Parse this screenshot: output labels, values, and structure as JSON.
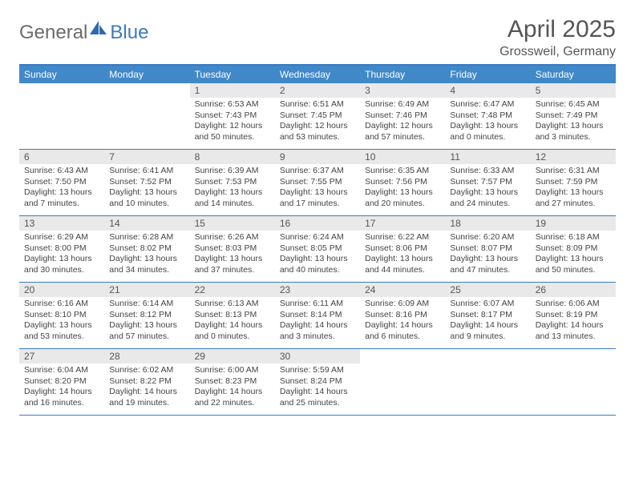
{
  "brand": {
    "word1": "General",
    "word2": "Blue"
  },
  "title": "April 2025",
  "location": "Grossweil, Germany",
  "colors": {
    "header_bg": "#4188c9",
    "border": "#3a7abf",
    "daynum_bg": "#e9e9e9",
    "text": "#444444"
  },
  "dow": [
    "Sunday",
    "Monday",
    "Tuesday",
    "Wednesday",
    "Thursday",
    "Friday",
    "Saturday"
  ],
  "weeks": [
    [
      {
        "n": "",
        "sr": "",
        "ss": "",
        "dl": ""
      },
      {
        "n": "",
        "sr": "",
        "ss": "",
        "dl": ""
      },
      {
        "n": "1",
        "sr": "Sunrise: 6:53 AM",
        "ss": "Sunset: 7:43 PM",
        "dl": "Daylight: 12 hours and 50 minutes."
      },
      {
        "n": "2",
        "sr": "Sunrise: 6:51 AM",
        "ss": "Sunset: 7:45 PM",
        "dl": "Daylight: 12 hours and 53 minutes."
      },
      {
        "n": "3",
        "sr": "Sunrise: 6:49 AM",
        "ss": "Sunset: 7:46 PM",
        "dl": "Daylight: 12 hours and 57 minutes."
      },
      {
        "n": "4",
        "sr": "Sunrise: 6:47 AM",
        "ss": "Sunset: 7:48 PM",
        "dl": "Daylight: 13 hours and 0 minutes."
      },
      {
        "n": "5",
        "sr": "Sunrise: 6:45 AM",
        "ss": "Sunset: 7:49 PM",
        "dl": "Daylight: 13 hours and 3 minutes."
      }
    ],
    [
      {
        "n": "6",
        "sr": "Sunrise: 6:43 AM",
        "ss": "Sunset: 7:50 PM",
        "dl": "Daylight: 13 hours and 7 minutes."
      },
      {
        "n": "7",
        "sr": "Sunrise: 6:41 AM",
        "ss": "Sunset: 7:52 PM",
        "dl": "Daylight: 13 hours and 10 minutes."
      },
      {
        "n": "8",
        "sr": "Sunrise: 6:39 AM",
        "ss": "Sunset: 7:53 PM",
        "dl": "Daylight: 13 hours and 14 minutes."
      },
      {
        "n": "9",
        "sr": "Sunrise: 6:37 AM",
        "ss": "Sunset: 7:55 PM",
        "dl": "Daylight: 13 hours and 17 minutes."
      },
      {
        "n": "10",
        "sr": "Sunrise: 6:35 AM",
        "ss": "Sunset: 7:56 PM",
        "dl": "Daylight: 13 hours and 20 minutes."
      },
      {
        "n": "11",
        "sr": "Sunrise: 6:33 AM",
        "ss": "Sunset: 7:57 PM",
        "dl": "Daylight: 13 hours and 24 minutes."
      },
      {
        "n": "12",
        "sr": "Sunrise: 6:31 AM",
        "ss": "Sunset: 7:59 PM",
        "dl": "Daylight: 13 hours and 27 minutes."
      }
    ],
    [
      {
        "n": "13",
        "sr": "Sunrise: 6:29 AM",
        "ss": "Sunset: 8:00 PM",
        "dl": "Daylight: 13 hours and 30 minutes."
      },
      {
        "n": "14",
        "sr": "Sunrise: 6:28 AM",
        "ss": "Sunset: 8:02 PM",
        "dl": "Daylight: 13 hours and 34 minutes."
      },
      {
        "n": "15",
        "sr": "Sunrise: 6:26 AM",
        "ss": "Sunset: 8:03 PM",
        "dl": "Daylight: 13 hours and 37 minutes."
      },
      {
        "n": "16",
        "sr": "Sunrise: 6:24 AM",
        "ss": "Sunset: 8:05 PM",
        "dl": "Daylight: 13 hours and 40 minutes."
      },
      {
        "n": "17",
        "sr": "Sunrise: 6:22 AM",
        "ss": "Sunset: 8:06 PM",
        "dl": "Daylight: 13 hours and 44 minutes."
      },
      {
        "n": "18",
        "sr": "Sunrise: 6:20 AM",
        "ss": "Sunset: 8:07 PM",
        "dl": "Daylight: 13 hours and 47 minutes."
      },
      {
        "n": "19",
        "sr": "Sunrise: 6:18 AM",
        "ss": "Sunset: 8:09 PM",
        "dl": "Daylight: 13 hours and 50 minutes."
      }
    ],
    [
      {
        "n": "20",
        "sr": "Sunrise: 6:16 AM",
        "ss": "Sunset: 8:10 PM",
        "dl": "Daylight: 13 hours and 53 minutes."
      },
      {
        "n": "21",
        "sr": "Sunrise: 6:14 AM",
        "ss": "Sunset: 8:12 PM",
        "dl": "Daylight: 13 hours and 57 minutes."
      },
      {
        "n": "22",
        "sr": "Sunrise: 6:13 AM",
        "ss": "Sunset: 8:13 PM",
        "dl": "Daylight: 14 hours and 0 minutes."
      },
      {
        "n": "23",
        "sr": "Sunrise: 6:11 AM",
        "ss": "Sunset: 8:14 PM",
        "dl": "Daylight: 14 hours and 3 minutes."
      },
      {
        "n": "24",
        "sr": "Sunrise: 6:09 AM",
        "ss": "Sunset: 8:16 PM",
        "dl": "Daylight: 14 hours and 6 minutes."
      },
      {
        "n": "25",
        "sr": "Sunrise: 6:07 AM",
        "ss": "Sunset: 8:17 PM",
        "dl": "Daylight: 14 hours and 9 minutes."
      },
      {
        "n": "26",
        "sr": "Sunrise: 6:06 AM",
        "ss": "Sunset: 8:19 PM",
        "dl": "Daylight: 14 hours and 13 minutes."
      }
    ],
    [
      {
        "n": "27",
        "sr": "Sunrise: 6:04 AM",
        "ss": "Sunset: 8:20 PM",
        "dl": "Daylight: 14 hours and 16 minutes."
      },
      {
        "n": "28",
        "sr": "Sunrise: 6:02 AM",
        "ss": "Sunset: 8:22 PM",
        "dl": "Daylight: 14 hours and 19 minutes."
      },
      {
        "n": "29",
        "sr": "Sunrise: 6:00 AM",
        "ss": "Sunset: 8:23 PM",
        "dl": "Daylight: 14 hours and 22 minutes."
      },
      {
        "n": "30",
        "sr": "Sunrise: 5:59 AM",
        "ss": "Sunset: 8:24 PM",
        "dl": "Daylight: 14 hours and 25 minutes."
      },
      {
        "n": "",
        "sr": "",
        "ss": "",
        "dl": ""
      },
      {
        "n": "",
        "sr": "",
        "ss": "",
        "dl": ""
      },
      {
        "n": "",
        "sr": "",
        "ss": "",
        "dl": ""
      }
    ]
  ]
}
